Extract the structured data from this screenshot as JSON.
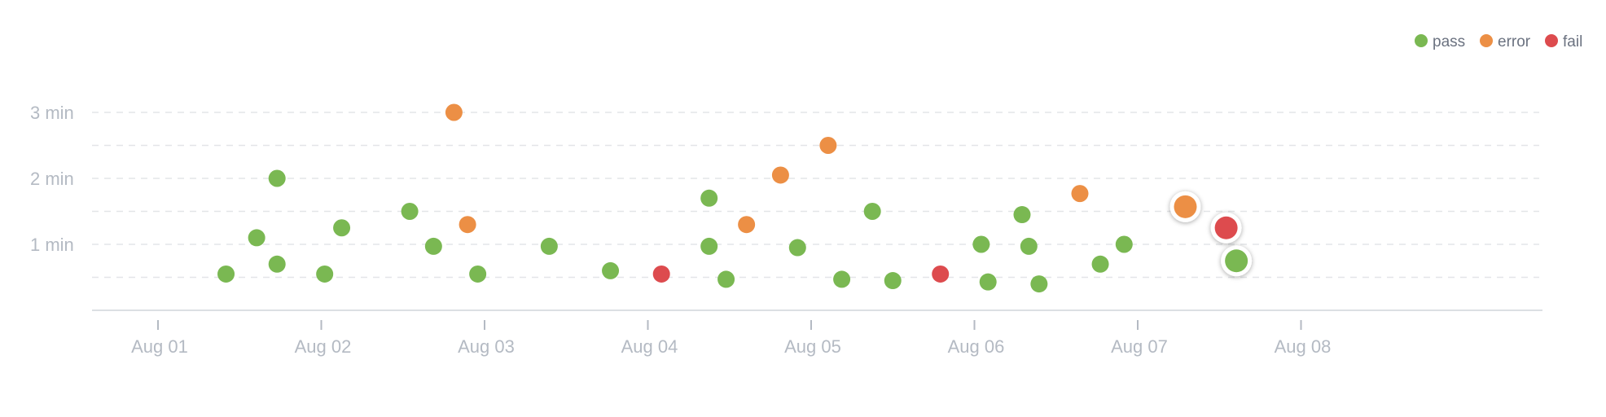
{
  "chart_data": {
    "type": "scatter",
    "title": "",
    "xlabel": "",
    "ylabel": "",
    "x_axis": {
      "type": "date",
      "ticks": [
        "Aug 01",
        "Aug 02",
        "Aug 03",
        "Aug 04",
        "Aug 05",
        "Aug 06",
        "Aug 07",
        "Aug 08"
      ]
    },
    "y_axis": {
      "unit": "min",
      "ticks": [
        {
          "value": 1,
          "label": "1 min"
        },
        {
          "value": 2,
          "label": "2 min"
        },
        {
          "value": 3,
          "label": "3 min"
        }
      ],
      "ylim": [
        0,
        3
      ],
      "minor_grid_step": 0.5
    },
    "grid": true,
    "legend": {
      "placement": "top-right",
      "items": [
        {
          "key": "pass",
          "label": "pass",
          "color": "#7ab852"
        },
        {
          "key": "error",
          "label": "error",
          "color": "#ec8f45"
        },
        {
          "key": "fail",
          "label": "fail",
          "color": "#dd4b4e"
        }
      ]
    },
    "series": [
      {
        "status": "pass",
        "points": [
          {
            "x": "2024-08-01T10:00",
            "y": 0.55
          },
          {
            "x": "2024-08-01T14:30",
            "y": 1.1
          },
          {
            "x": "2024-08-01T17:30",
            "y": 0.7
          },
          {
            "x": "2024-08-01T17:30",
            "y": 2.0
          },
          {
            "x": "2024-08-02T00:30",
            "y": 0.55
          },
          {
            "x": "2024-08-02T03:00",
            "y": 1.25
          },
          {
            "x": "2024-08-02T13:00",
            "y": 1.5
          },
          {
            "x": "2024-08-02T16:30",
            "y": 0.97
          },
          {
            "x": "2024-08-02T23:00",
            "y": 0.55
          },
          {
            "x": "2024-08-03T09:30",
            "y": 0.97
          },
          {
            "x": "2024-08-03T18:30",
            "y": 0.6
          },
          {
            "x": "2024-08-04T09:00",
            "y": 1.7
          },
          {
            "x": "2024-08-04T09:00",
            "y": 0.97
          },
          {
            "x": "2024-08-04T11:30",
            "y": 0.47
          },
          {
            "x": "2024-08-04T22:00",
            "y": 0.95
          },
          {
            "x": "2024-08-05T04:30",
            "y": 0.47
          },
          {
            "x": "2024-08-05T09:00",
            "y": 1.5
          },
          {
            "x": "2024-08-05T12:00",
            "y": 0.45
          },
          {
            "x": "2024-08-06T01:00",
            "y": 1.0
          },
          {
            "x": "2024-08-06T02:00",
            "y": 0.43
          },
          {
            "x": "2024-08-06T07:00",
            "y": 1.45
          },
          {
            "x": "2024-08-06T08:00",
            "y": 0.97
          },
          {
            "x": "2024-08-06T09:30",
            "y": 0.4
          },
          {
            "x": "2024-08-06T18:30",
            "y": 0.7
          },
          {
            "x": "2024-08-06T22:00",
            "y": 1.0
          },
          {
            "x": "2024-08-07T14:30",
            "y": 0.75,
            "highlight": true
          }
        ]
      },
      {
        "status": "error",
        "points": [
          {
            "x": "2024-08-02T19:30",
            "y": 3.0
          },
          {
            "x": "2024-08-02T21:30",
            "y": 1.3
          },
          {
            "x": "2024-08-04T14:30",
            "y": 1.3
          },
          {
            "x": "2024-08-04T19:30",
            "y": 2.05
          },
          {
            "x": "2024-08-05T02:30",
            "y": 2.5
          },
          {
            "x": "2024-08-06T15:30",
            "y": 1.77
          },
          {
            "x": "2024-08-07T07:00",
            "y": 1.57,
            "highlight": true
          }
        ]
      },
      {
        "status": "fail",
        "points": [
          {
            "x": "2024-08-04T02:00",
            "y": 0.55
          },
          {
            "x": "2024-08-05T19:00",
            "y": 0.55
          },
          {
            "x": "2024-08-07T13:00",
            "y": 1.25,
            "highlight": true
          }
        ]
      }
    ]
  }
}
